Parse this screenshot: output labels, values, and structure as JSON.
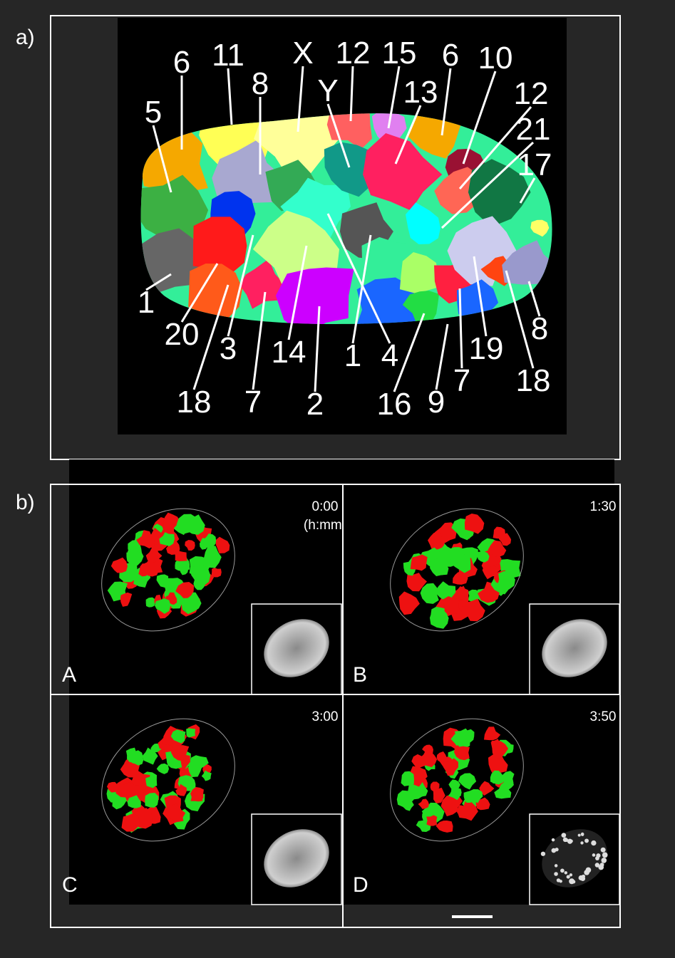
{
  "panel_a": {
    "label": "a)",
    "region_labels": [
      "5",
      "6",
      "11",
      "8",
      "X",
      "12",
      "15",
      "13",
      "6",
      "10",
      "12",
      "21",
      "17",
      "Y",
      "1",
      "20",
      "3",
      "18",
      "7",
      "14",
      "2",
      "1",
      "4",
      "16",
      "9",
      "7",
      "19",
      "18",
      "8"
    ]
  },
  "panel_b": {
    "label": "b)",
    "frames": [
      {
        "letter": "A",
        "time": "0:00",
        "time_unit": "(h:mm)"
      },
      {
        "letter": "B",
        "time": "1:30"
      },
      {
        "letter": "C",
        "time": "3:00"
      },
      {
        "letter": "D",
        "time": "3:50"
      }
    ]
  }
}
